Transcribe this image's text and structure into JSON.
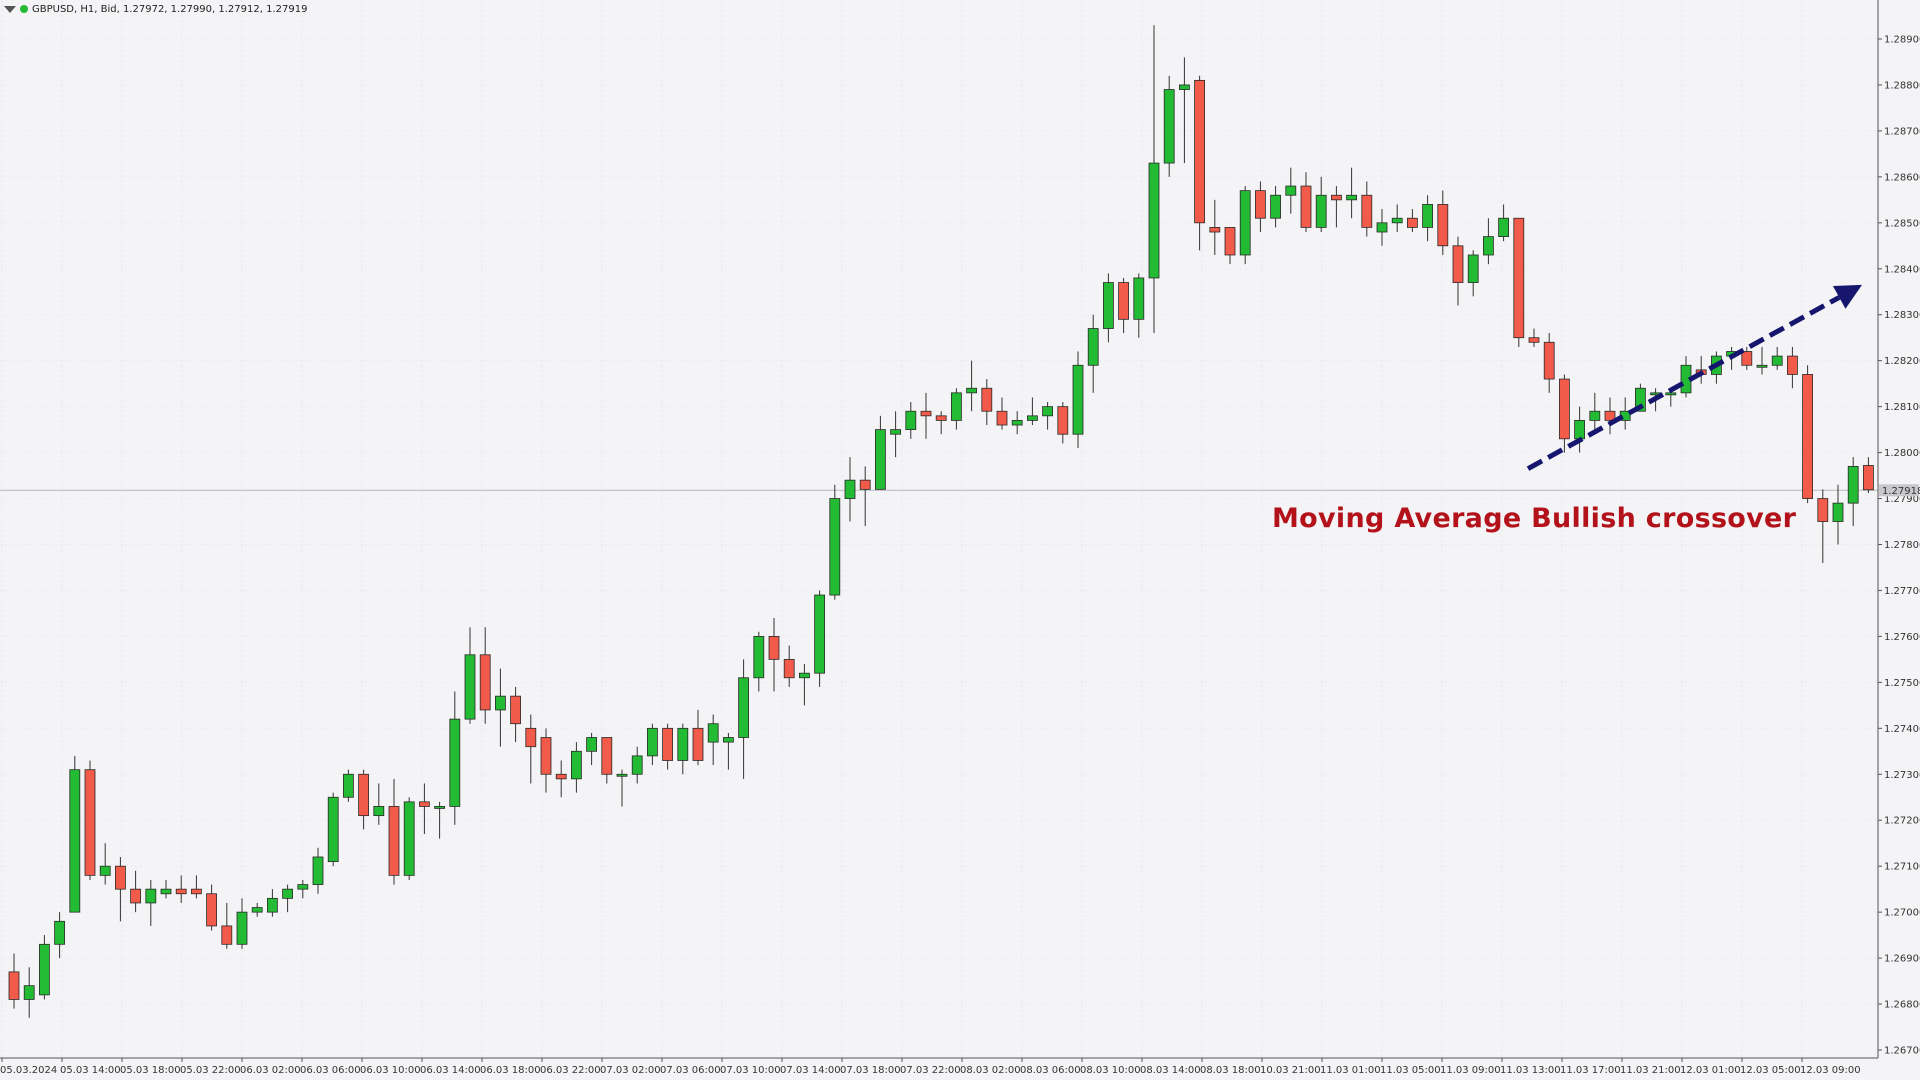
{
  "header": {
    "symbol_line": "GBPUSD, H1, Bid, 1.27972, 1.27990, 1.27912, 1.27919"
  },
  "annotation": {
    "text": "Moving Average Bullish crossover"
  },
  "colors": {
    "bull": "#22bb33",
    "bear": "#f25a4a",
    "trend_arrow": "#16166e",
    "annotation": "#b3121b",
    "background": "#f4f4f6"
  },
  "chart_data": {
    "type": "candlestick",
    "symbol": "GBPUSD",
    "timeframe": "H1",
    "price_type": "Bid",
    "y_range": [
      1.267,
      1.2895
    ],
    "y_ticks": [
      "1.28900",
      "1.28800",
      "1.28700",
      "1.28600",
      "1.28500",
      "1.28400",
      "1.28300",
      "1.28200",
      "1.28100",
      "1.28000",
      "1.27900",
      "1.27800",
      "1.27700",
      "1.27600",
      "1.27500",
      "1.27400",
      "1.27300",
      "1.27200",
      "1.27100",
      "1.27000",
      "1.26900",
      "1.26800",
      "1.26700"
    ],
    "current_price": "1.27918",
    "x_labels": [
      "05.03.2024",
      "05.03 14:00",
      "05.03 18:00",
      "05.03 22:00",
      "06.03 02:00",
      "06.03 06:00",
      "06.03 10:00",
      "06.03 14:00",
      "06.03 18:00",
      "06.03 22:00",
      "07.03 02:00",
      "07.03 06:00",
      "07.03 10:00",
      "07.03 14:00",
      "07.03 18:00",
      "07.03 22:00",
      "08.03 02:00",
      "08.03 06:00",
      "08.03 10:00",
      "08.03 14:00",
      "08.03 18:00",
      "10.03 21:00",
      "11.03 01:00",
      "11.03 05:00",
      "11.03 09:00",
      "11.03 13:00",
      "11.03 17:00",
      "11.03 21:00",
      "12.03 01:00",
      "12.03 05:00",
      "12.03 09:00"
    ],
    "candles": [
      {
        "o": 1.2687,
        "h": 1.2691,
        "l": 1.2679,
        "c": 1.2681
      },
      {
        "o": 1.2681,
        "h": 1.2688,
        "l": 1.2677,
        "c": 1.2684
      },
      {
        "o": 1.2682,
        "h": 1.2695,
        "l": 1.2681,
        "c": 1.2693
      },
      {
        "o": 1.2693,
        "h": 1.27,
        "l": 1.269,
        "c": 1.2698
      },
      {
        "o": 1.27,
        "h": 1.2734,
        "l": 1.27,
        "c": 1.2731
      },
      {
        "o": 1.2731,
        "h": 1.2733,
        "l": 1.2707,
        "c": 1.2708
      },
      {
        "o": 1.2708,
        "h": 1.2715,
        "l": 1.2706,
        "c": 1.271
      },
      {
        "o": 1.271,
        "h": 1.2712,
        "l": 1.2698,
        "c": 1.2705
      },
      {
        "o": 1.2705,
        "h": 1.2709,
        "l": 1.27,
        "c": 1.2702
      },
      {
        "o": 1.2702,
        "h": 1.2707,
        "l": 1.2697,
        "c": 1.2705
      },
      {
        "o": 1.2704,
        "h": 1.2707,
        "l": 1.2703,
        "c": 1.2705
      },
      {
        "o": 1.2705,
        "h": 1.2708,
        "l": 1.2702,
        "c": 1.2704
      },
      {
        "o": 1.2705,
        "h": 1.2708,
        "l": 1.2703,
        "c": 1.2704
      },
      {
        "o": 1.2704,
        "h": 1.2706,
        "l": 1.2696,
        "c": 1.2697
      },
      {
        "o": 1.2697,
        "h": 1.2702,
        "l": 1.2692,
        "c": 1.2693
      },
      {
        "o": 1.2693,
        "h": 1.2703,
        "l": 1.2692,
        "c": 1.27
      },
      {
        "o": 1.27,
        "h": 1.2702,
        "l": 1.2699,
        "c": 1.2701
      },
      {
        "o": 1.27,
        "h": 1.2705,
        "l": 1.2699,
        "c": 1.2703
      },
      {
        "o": 1.2703,
        "h": 1.2706,
        "l": 1.27,
        "c": 1.2705
      },
      {
        "o": 1.2705,
        "h": 1.2707,
        "l": 1.2703,
        "c": 1.2706
      },
      {
        "o": 1.2706,
        "h": 1.2714,
        "l": 1.2704,
        "c": 1.2712
      },
      {
        "o": 1.2711,
        "h": 1.2726,
        "l": 1.271,
        "c": 1.2725
      },
      {
        "o": 1.2725,
        "h": 1.2731,
        "l": 1.2724,
        "c": 1.273
      },
      {
        "o": 1.273,
        "h": 1.2731,
        "l": 1.2718,
        "c": 1.2721
      },
      {
        "o": 1.2721,
        "h": 1.2728,
        "l": 1.2719,
        "c": 1.2723
      },
      {
        "o": 1.2723,
        "h": 1.2729,
        "l": 1.2706,
        "c": 1.2708
      },
      {
        "o": 1.2708,
        "h": 1.2725,
        "l": 1.2707,
        "c": 1.2724
      },
      {
        "o": 1.2724,
        "h": 1.2728,
        "l": 1.2717,
        "c": 1.2723
      },
      {
        "o": 1.2723,
        "h": 1.2724,
        "l": 1.2716,
        "c": 1.2723
      },
      {
        "o": 1.2723,
        "h": 1.2748,
        "l": 1.2719,
        "c": 1.2742
      },
      {
        "o": 1.2742,
        "h": 1.2762,
        "l": 1.2741,
        "c": 1.2756
      },
      {
        "o": 1.2756,
        "h": 1.2762,
        "l": 1.2741,
        "c": 1.2744
      },
      {
        "o": 1.2744,
        "h": 1.2753,
        "l": 1.2736,
        "c": 1.2747
      },
      {
        "o": 1.2747,
        "h": 1.2749,
        "l": 1.2737,
        "c": 1.2741
      },
      {
        "o": 1.274,
        "h": 1.2743,
        "l": 1.2728,
        "c": 1.2736
      },
      {
        "o": 1.2738,
        "h": 1.274,
        "l": 1.2726,
        "c": 1.273
      },
      {
        "o": 1.273,
        "h": 1.2733,
        "l": 1.2725,
        "c": 1.2729
      },
      {
        "o": 1.2729,
        "h": 1.2737,
        "l": 1.2726,
        "c": 1.2735
      },
      {
        "o": 1.2735,
        "h": 1.2739,
        "l": 1.2732,
        "c": 1.2738
      },
      {
        "o": 1.2738,
        "h": 1.2738,
        "l": 1.2728,
        "c": 1.273
      },
      {
        "o": 1.273,
        "h": 1.2731,
        "l": 1.2723,
        "c": 1.273
      },
      {
        "o": 1.273,
        "h": 1.2736,
        "l": 1.2728,
        "c": 1.2734
      },
      {
        "o": 1.2734,
        "h": 1.2741,
        "l": 1.2732,
        "c": 1.274
      },
      {
        "o": 1.274,
        "h": 1.2741,
        "l": 1.2731,
        "c": 1.2733
      },
      {
        "o": 1.2733,
        "h": 1.2741,
        "l": 1.273,
        "c": 1.274
      },
      {
        "o": 1.274,
        "h": 1.2744,
        "l": 1.2732,
        "c": 1.2733
      },
      {
        "o": 1.2737,
        "h": 1.2743,
        "l": 1.2732,
        "c": 1.2741
      },
      {
        "o": 1.2737,
        "h": 1.2739,
        "l": 1.2731,
        "c": 1.2738
      },
      {
        "o": 1.2738,
        "h": 1.2755,
        "l": 1.2729,
        "c": 1.2751
      },
      {
        "o": 1.2751,
        "h": 1.2761,
        "l": 1.2748,
        "c": 1.276
      },
      {
        "o": 1.276,
        "h": 1.2764,
        "l": 1.2748,
        "c": 1.2755
      },
      {
        "o": 1.2755,
        "h": 1.2758,
        "l": 1.2749,
        "c": 1.2751
      },
      {
        "o": 1.2751,
        "h": 1.2754,
        "l": 1.2745,
        "c": 1.2752
      },
      {
        "o": 1.2752,
        "h": 1.277,
        "l": 1.2749,
        "c": 1.2769
      },
      {
        "o": 1.2769,
        "h": 1.2793,
        "l": 1.2768,
        "c": 1.279
      },
      {
        "o": 1.279,
        "h": 1.2799,
        "l": 1.2785,
        "c": 1.2794
      },
      {
        "o": 1.2794,
        "h": 1.2797,
        "l": 1.2784,
        "c": 1.2792
      },
      {
        "o": 1.2792,
        "h": 1.2808,
        "l": 1.2792,
        "c": 1.2805
      },
      {
        "o": 1.2804,
        "h": 1.2809,
        "l": 1.2799,
        "c": 1.2805
      },
      {
        "o": 1.2805,
        "h": 1.2811,
        "l": 1.2803,
        "c": 1.2809
      },
      {
        "o": 1.2809,
        "h": 1.2813,
        "l": 1.2803,
        "c": 1.2808
      },
      {
        "o": 1.2808,
        "h": 1.2809,
        "l": 1.2804,
        "c": 1.2807
      },
      {
        "o": 1.2807,
        "h": 1.2814,
        "l": 1.2805,
        "c": 1.2813
      },
      {
        "o": 1.2813,
        "h": 1.282,
        "l": 1.2809,
        "c": 1.2814
      },
      {
        "o": 1.2814,
        "h": 1.2816,
        "l": 1.2806,
        "c": 1.2809
      },
      {
        "o": 1.2809,
        "h": 1.2812,
        "l": 1.2805,
        "c": 1.2806
      },
      {
        "o": 1.2806,
        "h": 1.2809,
        "l": 1.2804,
        "c": 1.2807
      },
      {
        "o": 1.2807,
        "h": 1.2812,
        "l": 1.2806,
        "c": 1.2808
      },
      {
        "o": 1.2808,
        "h": 1.2811,
        "l": 1.2805,
        "c": 1.281
      },
      {
        "o": 1.281,
        "h": 1.2811,
        "l": 1.2802,
        "c": 1.2804
      },
      {
        "o": 1.2804,
        "h": 1.2822,
        "l": 1.2801,
        "c": 1.2819
      },
      {
        "o": 1.2819,
        "h": 1.283,
        "l": 1.2813,
        "c": 1.2827
      },
      {
        "o": 1.2827,
        "h": 1.2839,
        "l": 1.2824,
        "c": 1.2837
      },
      {
        "o": 1.2837,
        "h": 1.2838,
        "l": 1.2826,
        "c": 1.2829
      },
      {
        "o": 1.2829,
        "h": 1.2839,
        "l": 1.2825,
        "c": 1.2838
      },
      {
        "o": 1.2838,
        "h": 1.2893,
        "l": 1.2826,
        "c": 1.2863
      },
      {
        "o": 1.2863,
        "h": 1.2882,
        "l": 1.286,
        "c": 1.2879
      },
      {
        "o": 1.2879,
        "h": 1.2886,
        "l": 1.2863,
        "c": 1.288
      },
      {
        "o": 1.2881,
        "h": 1.2882,
        "l": 1.2844,
        "c": 1.285
      },
      {
        "o": 1.2849,
        "h": 1.2855,
        "l": 1.2843,
        "c": 1.2848
      },
      {
        "o": 1.2849,
        "h": 1.2849,
        "l": 1.2841,
        "c": 1.2843
      },
      {
        "o": 1.2843,
        "h": 1.2858,
        "l": 1.2841,
        "c": 1.2857
      },
      {
        "o": 1.2857,
        "h": 1.2859,
        "l": 1.2848,
        "c": 1.2851
      },
      {
        "o": 1.2851,
        "h": 1.2858,
        "l": 1.2849,
        "c": 1.2856
      },
      {
        "o": 1.2856,
        "h": 1.2862,
        "l": 1.2852,
        "c": 1.2858
      },
      {
        "o": 1.2858,
        "h": 1.2861,
        "l": 1.2848,
        "c": 1.2849
      },
      {
        "o": 1.2849,
        "h": 1.286,
        "l": 1.2848,
        "c": 1.2856
      },
      {
        "o": 1.2856,
        "h": 1.2858,
        "l": 1.2849,
        "c": 1.2855
      },
      {
        "o": 1.2855,
        "h": 1.2862,
        "l": 1.2851,
        "c": 1.2856
      },
      {
        "o": 1.2856,
        "h": 1.2859,
        "l": 1.2847,
        "c": 1.2849
      },
      {
        "o": 1.2848,
        "h": 1.2853,
        "l": 1.2845,
        "c": 1.285
      },
      {
        "o": 1.285,
        "h": 1.2854,
        "l": 1.2848,
        "c": 1.2851
      },
      {
        "o": 1.2851,
        "h": 1.2853,
        "l": 1.2848,
        "c": 1.2849
      },
      {
        "o": 1.2849,
        "h": 1.2856,
        "l": 1.2846,
        "c": 1.2854
      },
      {
        "o": 1.2854,
        "h": 1.2857,
        "l": 1.2843,
        "c": 1.2845
      },
      {
        "o": 1.2845,
        "h": 1.2847,
        "l": 1.2832,
        "c": 1.2837
      },
      {
        "o": 1.2837,
        "h": 1.2844,
        "l": 1.2834,
        "c": 1.2843
      },
      {
        "o": 1.2843,
        "h": 1.2851,
        "l": 1.2841,
        "c": 1.2847
      },
      {
        "o": 1.2847,
        "h": 1.2854,
        "l": 1.2846,
        "c": 1.2851
      },
      {
        "o": 1.2851,
        "h": 1.2851,
        "l": 1.2823,
        "c": 1.2825
      },
      {
        "o": 1.2825,
        "h": 1.2827,
        "l": 1.2823,
        "c": 1.2824
      },
      {
        "o": 1.2824,
        "h": 1.2826,
        "l": 1.2813,
        "c": 1.2816
      },
      {
        "o": 1.2816,
        "h": 1.2817,
        "l": 1.28,
        "c": 1.2803
      },
      {
        "o": 1.2803,
        "h": 1.281,
        "l": 1.28,
        "c": 1.2807
      },
      {
        "o": 1.2807,
        "h": 1.2813,
        "l": 1.2804,
        "c": 1.2809
      },
      {
        "o": 1.2809,
        "h": 1.2812,
        "l": 1.2804,
        "c": 1.2807
      },
      {
        "o": 1.2807,
        "h": 1.2812,
        "l": 1.2805,
        "c": 1.2809
      },
      {
        "o": 1.2809,
        "h": 1.2815,
        "l": 1.2809,
        "c": 1.2814
      },
      {
        "o": 1.2813,
        "h": 1.2814,
        "l": 1.2809,
        "c": 1.2813
      },
      {
        "o": 1.2813,
        "h": 1.2814,
        "l": 1.281,
        "c": 1.2813
      },
      {
        "o": 1.2813,
        "h": 1.2821,
        "l": 1.2812,
        "c": 1.2819
      },
      {
        "o": 1.2818,
        "h": 1.2821,
        "l": 1.2815,
        "c": 1.2817
      },
      {
        "o": 1.2817,
        "h": 1.2822,
        "l": 1.2815,
        "c": 1.2821
      },
      {
        "o": 1.2821,
        "h": 1.2823,
        "l": 1.2818,
        "c": 1.2822
      },
      {
        "o": 1.2822,
        "h": 1.2823,
        "l": 1.2818,
        "c": 1.2819
      },
      {
        "o": 1.2819,
        "h": 1.2823,
        "l": 1.2817,
        "c": 1.2819
      },
      {
        "o": 1.2819,
        "h": 1.2823,
        "l": 1.2818,
        "c": 1.2821
      },
      {
        "o": 1.2821,
        "h": 1.2823,
        "l": 1.2814,
        "c": 1.2817
      },
      {
        "o": 1.2817,
        "h": 1.2819,
        "l": 1.2789,
        "c": 1.279
      },
      {
        "o": 1.279,
        "h": 1.2792,
        "l": 1.2776,
        "c": 1.2785
      },
      {
        "o": 1.2785,
        "h": 1.2793,
        "l": 1.278,
        "c": 1.2789
      },
      {
        "o": 1.2789,
        "h": 1.2799,
        "l": 1.2784,
        "c": 1.2797
      },
      {
        "o": 1.27972,
        "h": 1.2799,
        "l": 1.27912,
        "c": 1.27919
      }
    ]
  }
}
